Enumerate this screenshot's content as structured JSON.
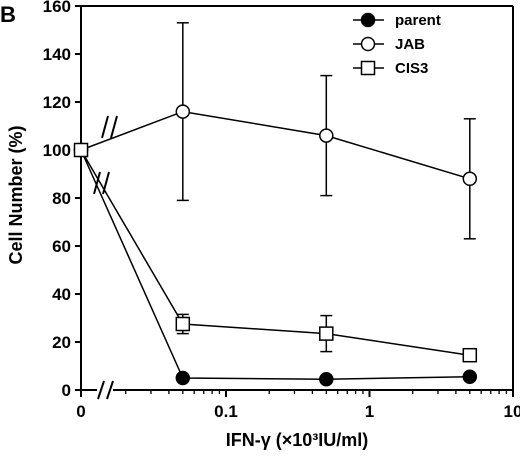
{
  "panel_label": "B",
  "chart_data": {
    "type": "line",
    "xlabel": "IFN-γ (×10³IU/ml)",
    "ylabel": "Cell Number (%)",
    "x_scale": "log with zero break",
    "ylim": [
      0,
      160
    ],
    "y_ticks": [
      0,
      20,
      40,
      60,
      80,
      100,
      120,
      140,
      160
    ],
    "x_ticks": [
      0,
      0.1,
      1,
      10
    ],
    "x_tick_labels": [
      "0",
      "0.1",
      "1",
      "10"
    ],
    "grid": false,
    "legend_position": "top-right",
    "series": [
      {
        "name": "parent",
        "marker": "filled-circle",
        "x": [
          0,
          0.05,
          0.5,
          5
        ],
        "y": [
          100,
          5,
          4.5,
          5.5
        ],
        "err": [
          0,
          0,
          0,
          0
        ]
      },
      {
        "name": "JAB",
        "marker": "open-circle",
        "x": [
          0,
          0.05,
          0.5,
          5
        ],
        "y": [
          100,
          116,
          106,
          88
        ],
        "err": [
          0,
          37,
          25,
          25
        ]
      },
      {
        "name": "CIS3",
        "marker": "open-square",
        "x": [
          0,
          0.05,
          0.5,
          5
        ],
        "y": [
          100,
          27.5,
          23.5,
          14.5
        ],
        "err": [
          0,
          4,
          7.5,
          1.5
        ]
      }
    ]
  }
}
